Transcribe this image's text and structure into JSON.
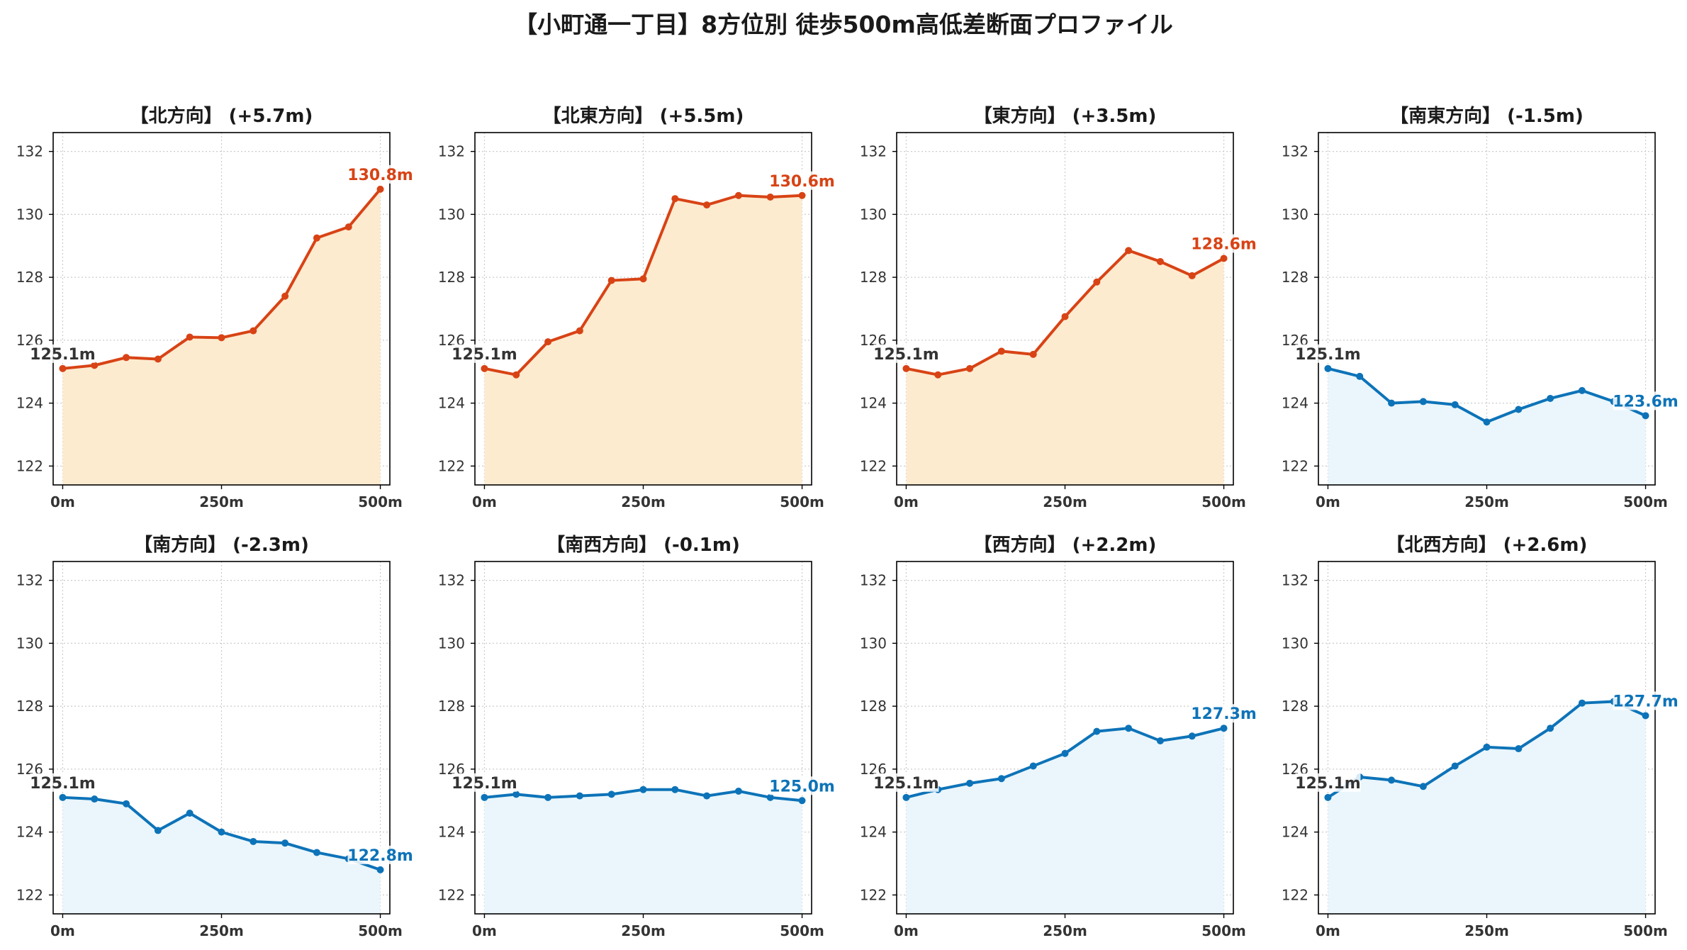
{
  "page_title": "【小町通一丁目】8方位別 徒歩500m高低差断面プロファイル",
  "colors": {
    "up_line": "#D84315",
    "up_fill": "#FDEBD0",
    "down_line": "#0D73B8",
    "down_fill": "#EAF6FC",
    "start_label": "#333333"
  },
  "chart_data": [
    {
      "type": "area",
      "title": "【北方向】 (+5.7m)",
      "trend": "up",
      "x": [
        0,
        50,
        100,
        150,
        200,
        250,
        300,
        350,
        400,
        450,
        500
      ],
      "y": [
        125.1,
        125.2,
        125.45,
        125.4,
        126.1,
        126.08,
        126.3,
        127.4,
        129.25,
        129.6,
        130.8
      ],
      "start_label": "125.1m",
      "end_label": "130.8m",
      "xticks": [
        "0m",
        "250m",
        "500m"
      ],
      "yticks": [
        122,
        124,
        126,
        128,
        130,
        132
      ],
      "ylim": [
        121.4,
        132.6
      ],
      "xlim": [
        -15,
        515
      ],
      "grid": true
    },
    {
      "type": "area",
      "title": "【北東方向】 (+5.5m)",
      "trend": "up",
      "x": [
        0,
        50,
        100,
        150,
        200,
        250,
        300,
        350,
        400,
        450,
        500
      ],
      "y": [
        125.1,
        124.9,
        125.95,
        126.3,
        127.9,
        127.95,
        130.5,
        130.3,
        130.6,
        130.55,
        130.6
      ],
      "start_label": "125.1m",
      "end_label": "130.6m",
      "xticks": [
        "0m",
        "250m",
        "500m"
      ],
      "yticks": [
        122,
        124,
        126,
        128,
        130,
        132
      ],
      "ylim": [
        121.4,
        132.6
      ],
      "xlim": [
        -15,
        515
      ],
      "grid": true
    },
    {
      "type": "area",
      "title": "【東方向】 (+3.5m)",
      "trend": "up",
      "x": [
        0,
        50,
        100,
        150,
        200,
        250,
        300,
        350,
        400,
        450,
        500
      ],
      "y": [
        125.1,
        124.9,
        125.1,
        125.65,
        125.55,
        126.75,
        127.85,
        128.85,
        128.5,
        128.05,
        128.6
      ],
      "start_label": "125.1m",
      "end_label": "128.6m",
      "xticks": [
        "0m",
        "250m",
        "500m"
      ],
      "yticks": [
        122,
        124,
        126,
        128,
        130,
        132
      ],
      "ylim": [
        121.4,
        132.6
      ],
      "xlim": [
        -15,
        515
      ],
      "grid": true
    },
    {
      "type": "area",
      "title": "【南東方向】 (-1.5m)",
      "trend": "down",
      "x": [
        0,
        50,
        100,
        150,
        200,
        250,
        300,
        350,
        400,
        450,
        500
      ],
      "y": [
        125.1,
        124.85,
        124.0,
        124.05,
        123.95,
        123.4,
        123.8,
        124.15,
        124.4,
        124.05,
        123.6
      ],
      "start_label": "125.1m",
      "end_label": "123.6m",
      "xticks": [
        "0m",
        "250m",
        "500m"
      ],
      "yticks": [
        122,
        124,
        126,
        128,
        130,
        132
      ],
      "ylim": [
        121.4,
        132.6
      ],
      "xlim": [
        -15,
        515
      ],
      "grid": true
    },
    {
      "type": "area",
      "title": "【南方向】 (-2.3m)",
      "trend": "down",
      "x": [
        0,
        50,
        100,
        150,
        200,
        250,
        300,
        350,
        400,
        450,
        500
      ],
      "y": [
        125.1,
        125.05,
        124.9,
        124.05,
        124.6,
        124.0,
        123.7,
        123.65,
        123.35,
        123.15,
        122.8
      ],
      "start_label": "125.1m",
      "end_label": "122.8m",
      "xticks": [
        "0m",
        "250m",
        "500m"
      ],
      "yticks": [
        122,
        124,
        126,
        128,
        130,
        132
      ],
      "ylim": [
        121.4,
        132.6
      ],
      "xlim": [
        -15,
        515
      ],
      "grid": true
    },
    {
      "type": "area",
      "title": "【南西方向】 (-0.1m)",
      "trend": "down",
      "x": [
        0,
        50,
        100,
        150,
        200,
        250,
        300,
        350,
        400,
        450,
        500
      ],
      "y": [
        125.1,
        125.2,
        125.1,
        125.15,
        125.2,
        125.35,
        125.35,
        125.15,
        125.3,
        125.1,
        125.0
      ],
      "start_label": "125.1m",
      "end_label": "125.0m",
      "xticks": [
        "0m",
        "250m",
        "500m"
      ],
      "yticks": [
        122,
        124,
        126,
        128,
        130,
        132
      ],
      "ylim": [
        121.4,
        132.6
      ],
      "xlim": [
        -15,
        515
      ],
      "grid": true
    },
    {
      "type": "area",
      "title": "【西方向】 (+2.2m)",
      "trend": "down",
      "x": [
        0,
        50,
        100,
        150,
        200,
        250,
        300,
        350,
        400,
        450,
        500
      ],
      "y": [
        125.1,
        125.35,
        125.55,
        125.7,
        126.1,
        126.5,
        127.2,
        127.3,
        126.9,
        127.05,
        127.3
      ],
      "start_label": "125.1m",
      "end_label": "127.3m",
      "xticks": [
        "0m",
        "250m",
        "500m"
      ],
      "yticks": [
        122,
        124,
        126,
        128,
        130,
        132
      ],
      "ylim": [
        121.4,
        132.6
      ],
      "xlim": [
        -15,
        515
      ],
      "grid": true
    },
    {
      "type": "area",
      "title": "【北西方向】 (+2.6m)",
      "trend": "down",
      "x": [
        0,
        50,
        100,
        150,
        200,
        250,
        300,
        350,
        400,
        450,
        500
      ],
      "y": [
        125.1,
        125.75,
        125.65,
        125.45,
        126.1,
        126.7,
        126.65,
        127.3,
        128.1,
        128.15,
        127.7
      ],
      "start_label": "125.1m",
      "end_label": "127.7m",
      "xticks": [
        "0m",
        "250m",
        "500m"
      ],
      "yticks": [
        122,
        124,
        126,
        128,
        130,
        132
      ],
      "ylim": [
        121.4,
        132.6
      ],
      "xlim": [
        -15,
        515
      ],
      "grid": true
    }
  ]
}
